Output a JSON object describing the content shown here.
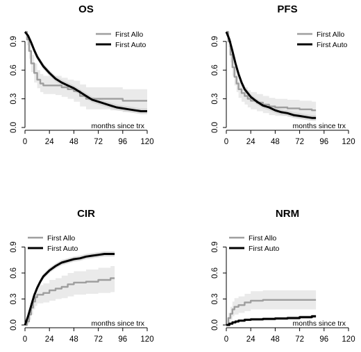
{
  "chart_data": [
    {
      "type": "line",
      "title": "OS",
      "xlabel": "months since trx",
      "ylabel": "",
      "xlim": [
        0,
        120
      ],
      "ylim": [
        0,
        1
      ],
      "xticks": [
        0,
        24,
        48,
        72,
        96,
        120
      ],
      "yticks": [
        0.0,
        0.3,
        0.6,
        0.9
      ],
      "ytick_labels": [
        "0.0",
        "0.3",
        "0.6",
        "0.9"
      ],
      "legend_position": "top-right",
      "series": [
        {
          "name": "First Allo",
          "color": "#9e9e9e",
          "step": true,
          "x": [
            0,
            2,
            4,
            6,
            9,
            12,
            15,
            18,
            24,
            30,
            36,
            42,
            48,
            54,
            60,
            66,
            72,
            84,
            96,
            108,
            120
          ],
          "y": [
            1.0,
            0.92,
            0.8,
            0.67,
            0.57,
            0.5,
            0.46,
            0.44,
            0.44,
            0.44,
            0.42,
            0.4,
            0.38,
            0.33,
            0.3,
            0.3,
            0.3,
            0.3,
            0.28,
            0.28,
            0.28
          ],
          "ci_lower": [
            1.0,
            0.86,
            0.72,
            0.58,
            0.47,
            0.41,
            0.37,
            0.35,
            0.35,
            0.34,
            0.32,
            0.3,
            0.27,
            0.22,
            0.19,
            0.19,
            0.19,
            0.18,
            0.16,
            0.16,
            0.16
          ],
          "ci_upper": [
            1.0,
            0.97,
            0.88,
            0.76,
            0.67,
            0.6,
            0.56,
            0.54,
            0.54,
            0.54,
            0.52,
            0.5,
            0.49,
            0.45,
            0.42,
            0.42,
            0.42,
            0.42,
            0.4,
            0.4,
            0.4
          ]
        },
        {
          "name": "First Auto",
          "color": "#000000",
          "step": false,
          "x": [
            0,
            3,
            6,
            9,
            12,
            18,
            24,
            30,
            36,
            42,
            48,
            54,
            60,
            66,
            72,
            78,
            84,
            90,
            96,
            102,
            108,
            114,
            120
          ],
          "y": [
            1.0,
            0.96,
            0.89,
            0.81,
            0.74,
            0.64,
            0.57,
            0.51,
            0.47,
            0.44,
            0.41,
            0.37,
            0.33,
            0.29,
            0.27,
            0.25,
            0.23,
            0.21,
            0.2,
            0.19,
            0.18,
            0.17,
            0.17
          ],
          "ci_lower": [
            1.0,
            0.94,
            0.86,
            0.78,
            0.71,
            0.61,
            0.54,
            0.48,
            0.44,
            0.41,
            0.38,
            0.34,
            0.3,
            0.26,
            0.24,
            0.22,
            0.2,
            0.18,
            0.17,
            0.16,
            0.15,
            0.14,
            0.14
          ],
          "ci_upper": [
            1.0,
            0.98,
            0.92,
            0.84,
            0.77,
            0.67,
            0.6,
            0.54,
            0.5,
            0.47,
            0.44,
            0.4,
            0.36,
            0.32,
            0.3,
            0.28,
            0.26,
            0.24,
            0.23,
            0.22,
            0.21,
            0.2,
            0.2
          ]
        }
      ]
    },
    {
      "type": "line",
      "title": "PFS",
      "xlabel": "months since trx",
      "ylabel": "",
      "xlim": [
        0,
        120
      ],
      "ylim": [
        0,
        1
      ],
      "xticks": [
        0,
        24,
        48,
        72,
        96,
        120
      ],
      "yticks": [
        0.0,
        0.3,
        0.6,
        0.9
      ],
      "ytick_labels": [
        "0.0",
        "0.3",
        "0.6",
        "0.9"
      ],
      "legend_position": "top-right",
      "series": [
        {
          "name": "First Allo",
          "color": "#9e9e9e",
          "step": true,
          "x": [
            0,
            2,
            4,
            6,
            8,
            10,
            12,
            15,
            18,
            21,
            24,
            30,
            36,
            42,
            48,
            60,
            72,
            84,
            88
          ],
          "y": [
            1.0,
            0.9,
            0.76,
            0.63,
            0.53,
            0.46,
            0.4,
            0.36,
            0.33,
            0.3,
            0.28,
            0.26,
            0.24,
            0.22,
            0.21,
            0.2,
            0.19,
            0.18,
            0.18
          ],
          "ci_lower": [
            1.0,
            0.84,
            0.68,
            0.54,
            0.44,
            0.37,
            0.31,
            0.27,
            0.24,
            0.21,
            0.19,
            0.17,
            0.15,
            0.13,
            0.12,
            0.11,
            0.1,
            0.09,
            0.09
          ],
          "ci_upper": [
            1.0,
            0.96,
            0.84,
            0.72,
            0.62,
            0.55,
            0.49,
            0.45,
            0.42,
            0.39,
            0.37,
            0.35,
            0.33,
            0.31,
            0.3,
            0.29,
            0.28,
            0.27,
            0.27
          ]
        },
        {
          "name": "First Auto",
          "color": "#000000",
          "step": false,
          "x": [
            0,
            3,
            6,
            9,
            12,
            15,
            18,
            24,
            30,
            36,
            42,
            48,
            54,
            60,
            66,
            72,
            78,
            84,
            88
          ],
          "y": [
            1.0,
            0.92,
            0.8,
            0.67,
            0.56,
            0.47,
            0.4,
            0.32,
            0.27,
            0.23,
            0.21,
            0.18,
            0.16,
            0.15,
            0.13,
            0.12,
            0.11,
            0.1,
            0.1
          ],
          "ci_lower": [
            1.0,
            0.9,
            0.77,
            0.64,
            0.53,
            0.44,
            0.37,
            0.29,
            0.24,
            0.2,
            0.18,
            0.15,
            0.13,
            0.12,
            0.1,
            0.09,
            0.08,
            0.07,
            0.07
          ],
          "ci_upper": [
            1.0,
            0.94,
            0.83,
            0.7,
            0.59,
            0.5,
            0.43,
            0.35,
            0.3,
            0.26,
            0.24,
            0.21,
            0.19,
            0.18,
            0.16,
            0.15,
            0.14,
            0.13,
            0.13
          ]
        }
      ]
    },
    {
      "type": "line",
      "title": "CIR",
      "xlabel": "months since trx",
      "ylabel": "",
      "xlim": [
        0,
        120
      ],
      "ylim": [
        0,
        1
      ],
      "xticks": [
        0,
        24,
        48,
        72,
        96,
        120
      ],
      "yticks": [
        0.0,
        0.3,
        0.6,
        0.9
      ],
      "ytick_labels": [
        "0.0",
        "0.3",
        "0.6",
        "0.9"
      ],
      "legend_position": "top-left",
      "series": [
        {
          "name": "First Allo",
          "color": "#9e9e9e",
          "step": true,
          "x": [
            0,
            2,
            4,
            6,
            8,
            10,
            12,
            18,
            24,
            30,
            36,
            42,
            48,
            60,
            72,
            84,
            88
          ],
          "y": [
            0.0,
            0.04,
            0.12,
            0.2,
            0.27,
            0.32,
            0.35,
            0.37,
            0.4,
            0.42,
            0.44,
            0.47,
            0.49,
            0.5,
            0.52,
            0.54,
            0.54
          ],
          "ci_lower": [
            0.0,
            0.01,
            0.06,
            0.12,
            0.18,
            0.22,
            0.25,
            0.26,
            0.28,
            0.3,
            0.31,
            0.33,
            0.35,
            0.36,
            0.37,
            0.38,
            0.38
          ],
          "ci_upper": [
            0.0,
            0.08,
            0.2,
            0.29,
            0.37,
            0.42,
            0.46,
            0.48,
            0.52,
            0.54,
            0.57,
            0.6,
            0.62,
            0.64,
            0.66,
            0.68,
            0.68
          ]
        },
        {
          "name": "First Auto",
          "color": "#000000",
          "step": false,
          "x": [
            0,
            3,
            6,
            9,
            12,
            15,
            18,
            24,
            30,
            36,
            42,
            48,
            54,
            60,
            66,
            72,
            78,
            84,
            88
          ],
          "y": [
            0.0,
            0.1,
            0.22,
            0.34,
            0.43,
            0.5,
            0.56,
            0.63,
            0.68,
            0.72,
            0.74,
            0.76,
            0.77,
            0.79,
            0.8,
            0.81,
            0.82,
            0.82,
            0.82
          ],
          "ci_lower": [
            0.0,
            0.08,
            0.19,
            0.31,
            0.4,
            0.47,
            0.53,
            0.6,
            0.65,
            0.69,
            0.71,
            0.73,
            0.74,
            0.76,
            0.77,
            0.78,
            0.79,
            0.79,
            0.79
          ],
          "ci_upper": [
            0.0,
            0.12,
            0.25,
            0.37,
            0.46,
            0.53,
            0.59,
            0.66,
            0.71,
            0.75,
            0.77,
            0.79,
            0.8,
            0.82,
            0.83,
            0.84,
            0.85,
            0.85,
            0.85
          ]
        }
      ]
    },
    {
      "type": "line",
      "title": "NRM",
      "xlabel": "months since trx",
      "ylabel": "",
      "xlim": [
        0,
        120
      ],
      "ylim": [
        0,
        1
      ],
      "xticks": [
        0,
        24,
        48,
        72,
        96,
        120
      ],
      "yticks": [
        0.0,
        0.3,
        0.6,
        0.9
      ],
      "ytick_labels": [
        "0.0",
        "0.3",
        "0.6",
        "0.9"
      ],
      "legend_position": "top-left",
      "series": [
        {
          "name": "First Allo",
          "color": "#9e9e9e",
          "step": true,
          "x": [
            0,
            2,
            4,
            6,
            8,
            12,
            18,
            24,
            36,
            48,
            60,
            72,
            84,
            88
          ],
          "y": [
            0.0,
            0.08,
            0.13,
            0.18,
            0.21,
            0.23,
            0.26,
            0.28,
            0.29,
            0.29,
            0.29,
            0.29,
            0.29,
            0.29
          ],
          "ci_lower": [
            0.0,
            0.03,
            0.06,
            0.1,
            0.12,
            0.14,
            0.16,
            0.18,
            0.18,
            0.18,
            0.18,
            0.18,
            0.18,
            0.18
          ],
          "ci_upper": [
            0.0,
            0.14,
            0.21,
            0.27,
            0.31,
            0.33,
            0.36,
            0.39,
            0.4,
            0.4,
            0.4,
            0.4,
            0.4,
            0.4
          ]
        },
        {
          "name": "First Auto",
          "color": "#000000",
          "step": true,
          "x": [
            0,
            3,
            6,
            9,
            12,
            18,
            24,
            36,
            48,
            60,
            72,
            84,
            88
          ],
          "y": [
            0.0,
            0.015,
            0.03,
            0.04,
            0.05,
            0.06,
            0.065,
            0.07,
            0.075,
            0.08,
            0.09,
            0.1,
            0.1
          ],
          "ci_lower": [
            0.0,
            0.005,
            0.018,
            0.027,
            0.035,
            0.044,
            0.048,
            0.052,
            0.057,
            0.061,
            0.07,
            0.078,
            0.078
          ],
          "ci_upper": [
            0.0,
            0.025,
            0.042,
            0.053,
            0.065,
            0.076,
            0.082,
            0.088,
            0.093,
            0.099,
            0.11,
            0.122,
            0.122
          ]
        }
      ]
    }
  ]
}
